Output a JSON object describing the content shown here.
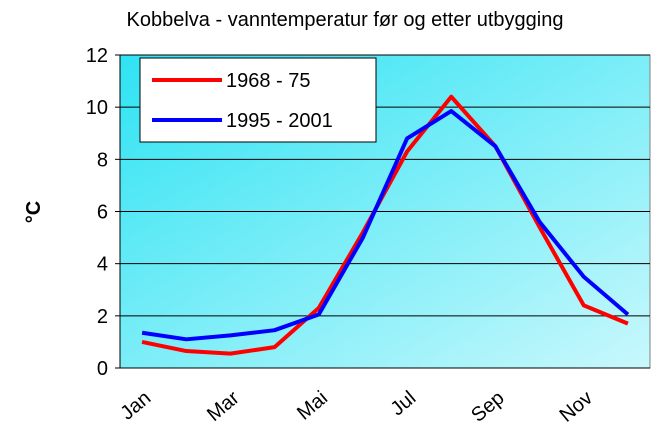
{
  "chart_data": {
    "type": "line",
    "title": "Kobbelva - vanntemperatur før og etter utbygging",
    "y_label": "°C",
    "categories": [
      "Jan",
      null,
      "Mar",
      null,
      "Mai",
      null,
      "Jul",
      null,
      "Sep",
      null,
      "Nov",
      null
    ],
    "series": [
      {
        "name": "1968 - 75",
        "color": "#ff0000",
        "values": [
          1.0,
          0.65,
          0.55,
          0.8,
          2.3,
          5.2,
          8.3,
          10.4,
          8.5,
          5.4,
          2.4,
          1.7
        ]
      },
      {
        "name": "1995 - 2001",
        "color": "#0000ff",
        "values": [
          1.35,
          1.1,
          1.25,
          1.45,
          2.05,
          5.0,
          8.8,
          9.85,
          8.5,
          5.6,
          3.5,
          2.05
        ]
      }
    ],
    "ylim": [
      0,
      12
    ],
    "yticks": [
      0,
      2,
      4,
      6,
      8,
      10,
      12
    ],
    "grid": true,
    "legend": "upper left"
  }
}
